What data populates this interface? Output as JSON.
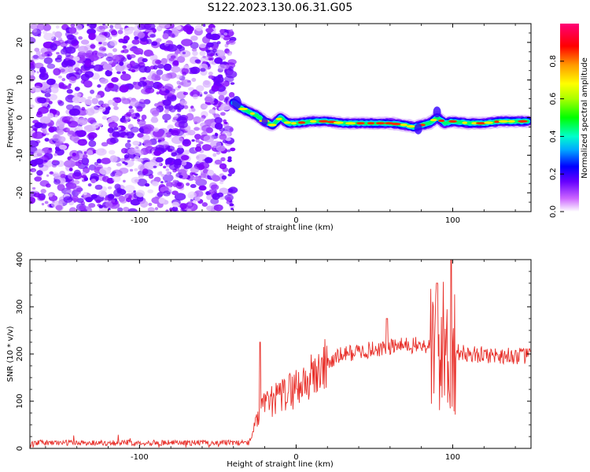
{
  "title": "S122.2023.130.06.31.G05",
  "chart_data": [
    {
      "type": "heatmap",
      "name": "spectrogram",
      "xlabel": "Height of straight line (km)",
      "ylabel": "Frequency (Hz)",
      "xlim": [
        -170,
        150
      ],
      "ylim": [
        -25,
        25
      ],
      "xticks": [
        -100,
        0,
        100
      ],
      "xtick_labels": [
        "-100",
        "0",
        "100"
      ],
      "yticks": [
        -20,
        -10,
        0,
        10,
        20
      ],
      "ytick_labels": [
        "-20",
        "-10",
        "0",
        "10",
        "20"
      ],
      "noise_region_x": [
        -170,
        -40
      ],
      "signal_track": {
        "x": [
          -40,
          -35,
          -30,
          -25,
          -20,
          -15,
          -10,
          -5,
          0,
          10,
          20,
          30,
          40,
          50,
          60,
          70,
          75,
          80,
          85,
          90,
          95,
          100,
          110,
          120,
          130,
          140,
          148
        ],
        "frequency": [
          4,
          2.5,
          1.5,
          0.5,
          -1,
          -2,
          0,
          -1.5,
          -1.5,
          -1,
          -1,
          -1.5,
          -1.5,
          -1.5,
          -1.5,
          -2,
          -2.5,
          -2,
          -1.5,
          0,
          -1.5,
          -1,
          -1.5,
          -1.5,
          -1,
          -1,
          -1
        ]
      },
      "colorbar": {
        "label": "Normalized spectral amplitude",
        "range": [
          0,
          1
        ],
        "ticks": [
          0.0,
          0.2,
          0.4,
          0.6,
          0.8
        ],
        "tick_labels": [
          "0.0",
          "0.2",
          "0.4",
          "0.6",
          "0.8"
        ]
      }
    },
    {
      "type": "line",
      "name": "snr",
      "xlabel": "Height of straight line (km)",
      "ylabel": "SNR (10 * v/v)",
      "xlim": [
        -170,
        150
      ],
      "ylim": [
        0,
        400
      ],
      "xticks": [
        -100,
        0,
        100
      ],
      "xtick_labels": [
        "-100",
        "0",
        "100"
      ],
      "yticks": [
        0,
        100,
        200,
        300,
        400
      ],
      "ytick_labels": [
        "0",
        "100",
        "200",
        "300",
        "400"
      ],
      "color": "#e8302a",
      "envelope": {
        "x": [
          -170,
          -30,
          -25,
          -20,
          -10,
          0,
          10,
          20,
          30,
          40,
          50,
          60,
          70,
          80,
          85,
          90,
          95,
          100,
          110,
          120,
          130,
          140,
          150
        ],
        "y": [
          12,
          12,
          60,
          90,
          110,
          130,
          150,
          180,
          200,
          205,
          210,
          215,
          218,
          218,
          215,
          210,
          215,
          205,
          200,
          198,
          197,
          196,
          195
        ]
      },
      "peaks": [
        {
          "x": -23,
          "y": 225
        },
        {
          "x": 58,
          "y": 275
        },
        {
          "x": 90,
          "y": 350
        },
        {
          "x": 99,
          "y": 400
        }
      ]
    }
  ]
}
